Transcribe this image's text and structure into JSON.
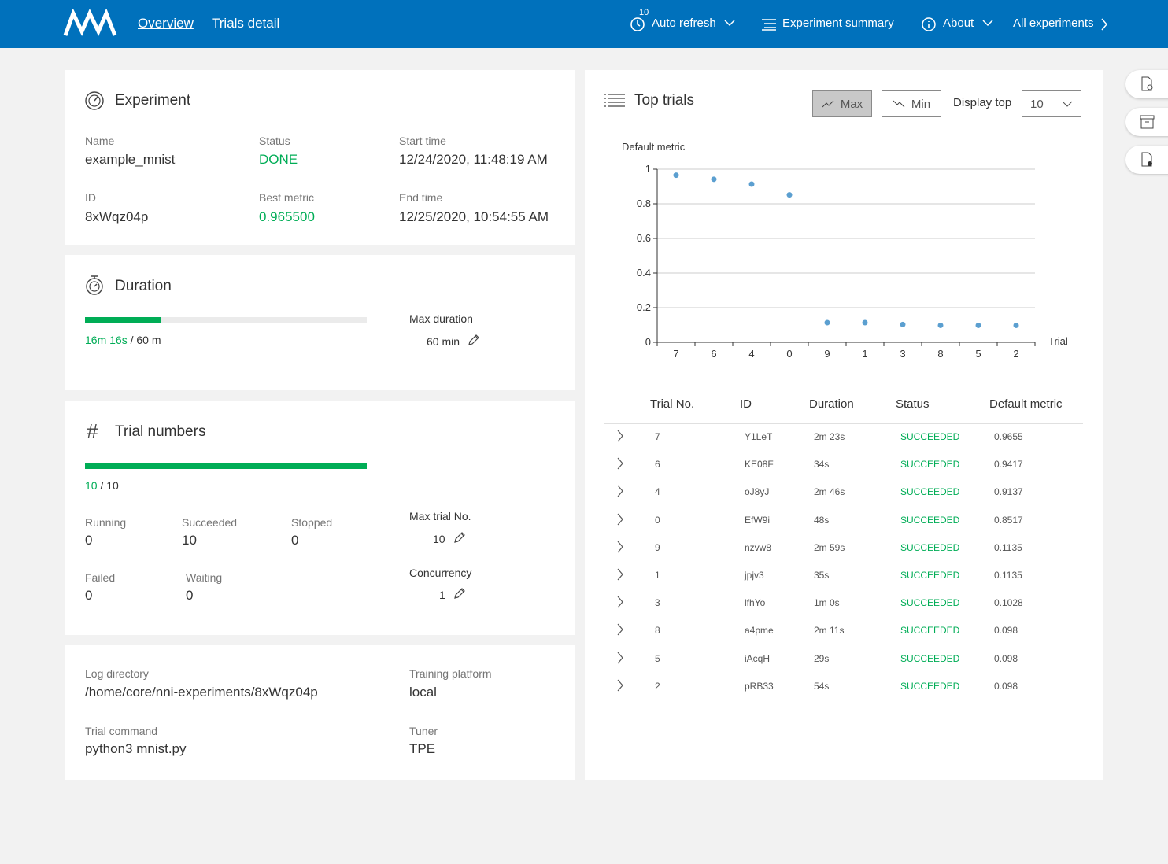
{
  "nav": {
    "tabs": [
      "Overview",
      "Trials detail"
    ],
    "auto_refresh_badge": "10",
    "auto_refresh": "Auto refresh",
    "experiment_summary": "Experiment summary",
    "about": "About",
    "all_experiments": "All experiments"
  },
  "experiment": {
    "title": "Experiment",
    "fields": [
      {
        "label": "Name",
        "value": "example_mnist"
      },
      {
        "label": "Status",
        "value": "DONE"
      },
      {
        "label": "Start time",
        "value": "12/24/2020, 11:48:19 AM"
      },
      {
        "label": "ID",
        "value": "8xWqz04p"
      },
      {
        "label": "Best metric",
        "value": "0.965500"
      },
      {
        "label": "End time",
        "value": "12/25/2020, 10:54:55 AM"
      }
    ]
  },
  "duration": {
    "title": "Duration",
    "elapsed": "16m 16s",
    "separator": "/",
    "total": "60 m",
    "max_duration_label": "Max duration",
    "max_duration_value": "60 min"
  },
  "trial_numbers": {
    "title": "Trial numbers",
    "done": "10",
    "separator": "/",
    "total": "10",
    "stats": [
      {
        "label": "Running",
        "value": "0"
      },
      {
        "label": "Succeeded",
        "value": "10"
      },
      {
        "label": "Stopped",
        "value": "0"
      },
      {
        "label": "Failed",
        "value": "0"
      },
      {
        "label": "Waiting",
        "value": "0"
      }
    ],
    "max_trial_label": "Max trial No.",
    "max_trial_value": "10",
    "concurrency_label": "Concurrency",
    "concurrency_value": "1"
  },
  "config": {
    "fields": [
      {
        "label": "Log directory",
        "value": "/home/core/nni-experiments/8xWqz04p"
      },
      {
        "label": "Training platform",
        "value": "local"
      },
      {
        "label": "Trial command",
        "value": "python3 mnist.py"
      },
      {
        "label": "Tuner",
        "value": "TPE"
      }
    ]
  },
  "top_trials": {
    "title": "Top trials",
    "buttons": [
      "Max",
      "Min"
    ],
    "display_top_label": "Display top",
    "display_top_value": "10",
    "table": {
      "headers": [
        "Trial No.",
        "ID",
        "Duration",
        "Status",
        "Default metric"
      ],
      "rows": [
        [
          "7",
          "Y1LeT",
          "2m 23s",
          "SUCCEEDED",
          "0.9655"
        ],
        [
          "6",
          "KE08F",
          "34s",
          "SUCCEEDED",
          "0.9417"
        ],
        [
          "4",
          "oJ8yJ",
          "2m 46s",
          "SUCCEEDED",
          "0.9137"
        ],
        [
          "0",
          "EfW9i",
          "48s",
          "SUCCEEDED",
          "0.8517"
        ],
        [
          "9",
          "nzvw8",
          "2m 59s",
          "SUCCEEDED",
          "0.1135"
        ],
        [
          "1",
          "jpjv3",
          "35s",
          "SUCCEEDED",
          "0.1135"
        ],
        [
          "3",
          "lfhYo",
          "1m 0s",
          "SUCCEEDED",
          "0.1028"
        ],
        [
          "8",
          "a4pme",
          "2m 11s",
          "SUCCEEDED",
          "0.098"
        ],
        [
          "5",
          "iAcqH",
          "29s",
          "SUCCEEDED",
          "0.098"
        ],
        [
          "2",
          "pRB33",
          "54s",
          "SUCCEEDED",
          "0.098"
        ]
      ]
    }
  },
  "chart_data": {
    "type": "scatter",
    "y_label": "Default metric",
    "x_label": "Trial",
    "categories": [
      "7",
      "6",
      "4",
      "0",
      "9",
      "1",
      "3",
      "8",
      "5",
      "2"
    ],
    "values": [
      0.9655,
      0.9417,
      0.9137,
      0.8517,
      0.1135,
      0.1135,
      0.1028,
      0.098,
      0.098,
      0.098
    ],
    "color": "#5b9fd0",
    "ylim": [
      0,
      1
    ],
    "yticks": [
      0,
      0.2,
      0.4,
      0.6,
      0.8,
      1
    ],
    "grid": true
  }
}
